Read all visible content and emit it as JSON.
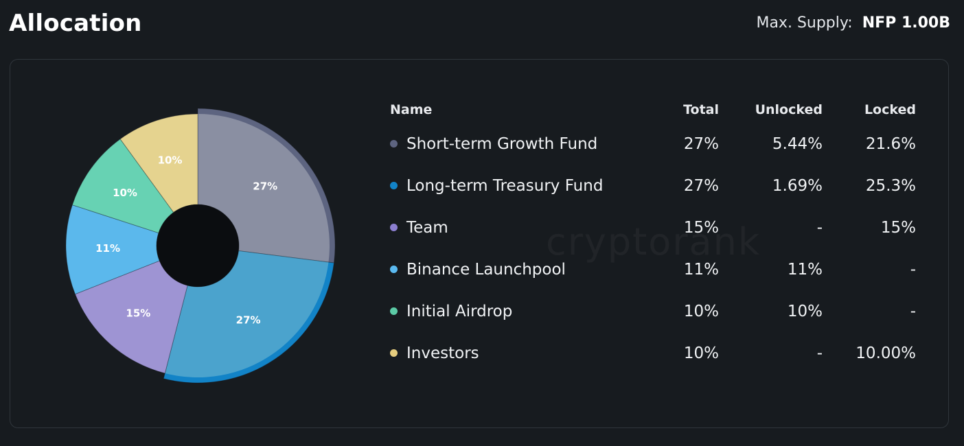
{
  "header": {
    "title": "Allocation",
    "supply_label": "Max. Supply:",
    "supply_value": "NFP 1.00B"
  },
  "watermark": "cryptorank",
  "table": {
    "columns": [
      "Name",
      "Total",
      "Unlocked",
      "Locked"
    ],
    "rows": [
      {
        "name": "Short-term Growth Fund",
        "total": "27%",
        "unlocked": "5.44%",
        "locked": "21.6%",
        "dot_color": "#5d6480"
      },
      {
        "name": "Long-term Treasury Fund",
        "total": "27%",
        "unlocked": "1.69%",
        "locked": "25.3%",
        "dot_color": "#1283c7"
      },
      {
        "name": "Team",
        "total": "15%",
        "unlocked": "-",
        "locked": "15%",
        "dot_color": "#8c7fd0"
      },
      {
        "name": "Binance Launchpool",
        "total": "11%",
        "unlocked": "11%",
        "locked": "-",
        "dot_color": "#5bbaf0"
      },
      {
        "name": "Initial Airdrop",
        "total": "10%",
        "unlocked": "10%",
        "locked": "-",
        "dot_color": "#5ccba6"
      },
      {
        "name": "Investors",
        "total": "10%",
        "unlocked": "-",
        "locked": "10.00%",
        "dot_color": "#e6cd7e"
      }
    ]
  },
  "chart_data": {
    "type": "pie",
    "donut": true,
    "categories": [
      "Short-term Growth Fund",
      "Long-term Treasury Fund",
      "Team",
      "Binance Launchpool",
      "Initial Airdrop",
      "Investors"
    ],
    "values": [
      27,
      27,
      15,
      11,
      10,
      10
    ],
    "labels": [
      "27%",
      "27%",
      "15%",
      "11%",
      "10%",
      "10%"
    ],
    "colors": {
      "outer": [
        "#5d6480",
        "#1283c7",
        "#8c7fd0",
        "#5bbaf0",
        "#5ccba6",
        "#e6cd7e"
      ],
      "inner": [
        "#8a8fa2",
        "#4ba3cd",
        "#9e94d3",
        "#5bb8ec",
        "#67d2b3",
        "#e5d38f"
      ]
    },
    "highlighted": [
      "Short-term Growth Fund",
      "Long-term Treasury Fund"
    ]
  }
}
